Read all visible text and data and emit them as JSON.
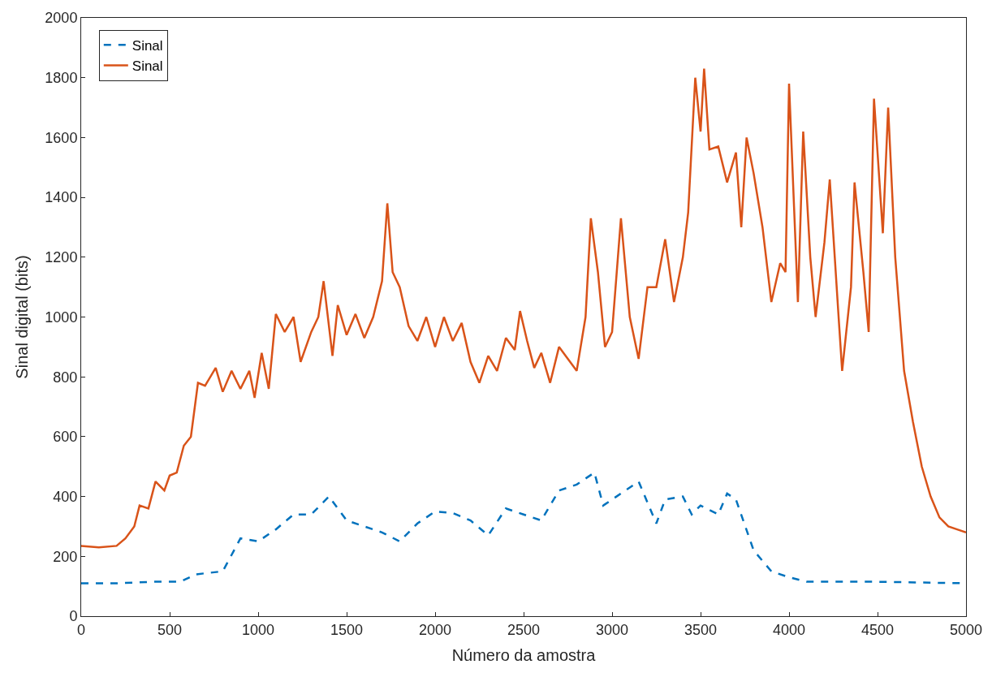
{
  "chart_data": {
    "type": "line",
    "xlabel": "Número da amostra",
    "ylabel": "Sinal digital (bits)",
    "xlim": [
      0,
      5000
    ],
    "xticks": [
      0,
      500,
      1000,
      1500,
      2000,
      2500,
      3000,
      3500,
      4000,
      4500,
      5000
    ],
    "ylim": [
      0,
      2000
    ],
    "yticks": [
      0,
      200,
      400,
      600,
      800,
      1000,
      1200,
      1400,
      1600,
      1800,
      2000
    ],
    "grid": false,
    "legend": "top left",
    "marker": "none",
    "series": [
      {
        "name": "Sinal",
        "color": "#0072bd",
        "line_style": "dashed",
        "x": [
          0,
          200,
          400,
          560,
          650,
          800,
          900,
          1000,
          1100,
          1200,
          1300,
          1400,
          1500,
          1600,
          1700,
          1800,
          1900,
          2000,
          2100,
          2200,
          2300,
          2400,
          2500,
          2600,
          2700,
          2800,
          2900,
          2950,
          3050,
          3150,
          3250,
          3300,
          3400,
          3450,
          3500,
          3600,
          3650,
          3700,
          3800,
          3900,
          4000,
          4100,
          4500,
          5000
        ],
        "values": [
          110,
          110,
          115,
          115,
          140,
          150,
          260,
          250,
          290,
          340,
          340,
          400,
          320,
          300,
          280,
          250,
          310,
          350,
          345,
          320,
          270,
          360,
          340,
          320,
          420,
          440,
          480,
          370,
          410,
          450,
          310,
          390,
          400,
          340,
          370,
          340,
          410,
          390,
          220,
          150,
          130,
          115,
          115,
          110
        ]
      },
      {
        "name": "Sinal",
        "color": "#d95319",
        "line_style": "solid",
        "x": [
          0,
          100,
          200,
          250,
          300,
          330,
          380,
          420,
          470,
          500,
          540,
          580,
          620,
          660,
          700,
          760,
          800,
          850,
          900,
          950,
          980,
          1020,
          1060,
          1100,
          1150,
          1200,
          1240,
          1300,
          1340,
          1370,
          1420,
          1450,
          1500,
          1550,
          1600,
          1650,
          1700,
          1730,
          1760,
          1800,
          1850,
          1900,
          1950,
          2000,
          2050,
          2100,
          2150,
          2200,
          2250,
          2300,
          2350,
          2400,
          2450,
          2480,
          2520,
          2560,
          2600,
          2650,
          2700,
          2750,
          2800,
          2850,
          2880,
          2920,
          2960,
          3000,
          3050,
          3100,
          3150,
          3200,
          3250,
          3300,
          3350,
          3400,
          3430,
          3470,
          3500,
          3520,
          3550,
          3600,
          3650,
          3700,
          3730,
          3760,
          3800,
          3850,
          3900,
          3950,
          3980,
          4000,
          4050,
          4080,
          4120,
          4150,
          4200,
          4230,
          4280,
          4300,
          4350,
          4370,
          4420,
          4450,
          4480,
          4530,
          4560,
          4600,
          4650,
          4700,
          4750,
          4800,
          4850,
          4900,
          4950,
          5000
        ],
        "values": [
          235,
          230,
          235,
          260,
          300,
          370,
          360,
          450,
          420,
          470,
          480,
          570,
          600,
          780,
          770,
          830,
          750,
          820,
          760,
          820,
          730,
          880,
          760,
          1010,
          950,
          1000,
          850,
          950,
          1000,
          1120,
          870,
          1040,
          940,
          1010,
          930,
          1000,
          1120,
          1380,
          1150,
          1100,
          970,
          920,
          1000,
          900,
          1000,
          920,
          980,
          850,
          780,
          870,
          820,
          930,
          890,
          1020,
          920,
          830,
          880,
          780,
          900,
          860,
          820,
          1000,
          1330,
          1150,
          900,
          950,
          1330,
          1000,
          860,
          1100,
          1100,
          1260,
          1050,
          1200,
          1350,
          1800,
          1620,
          1830,
          1560,
          1570,
          1450,
          1550,
          1300,
          1600,
          1480,
          1300,
          1050,
          1180,
          1150,
          1780,
          1050,
          1620,
          1200,
          1000,
          1250,
          1460,
          1000,
          820,
          1100,
          1450,
          1150,
          950,
          1730,
          1280,
          1700,
          1200,
          820,
          650,
          500,
          400,
          330,
          300,
          290,
          280
        ]
      }
    ]
  }
}
